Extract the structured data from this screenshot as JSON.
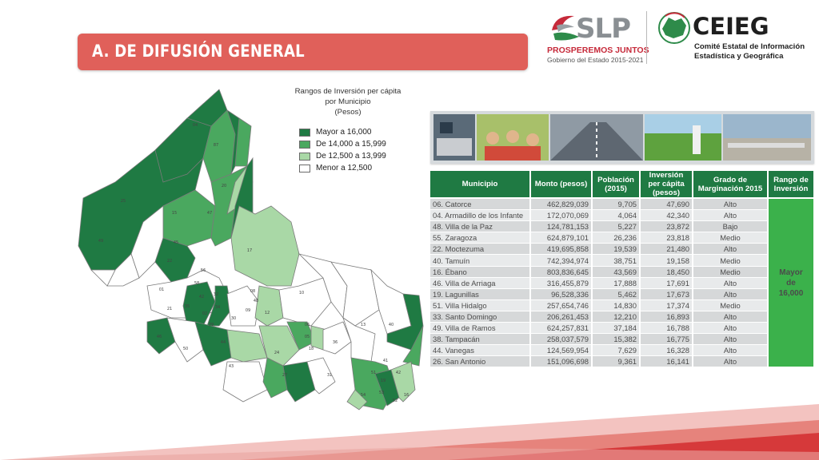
{
  "header": {
    "title": "A. DE DIFUSIÓN GENERAL",
    "slp_logo": {
      "word": "SLP",
      "tagline": "PROSPEREMOS JUNTOS",
      "government": "Gobierno del Estado 2015-2021"
    },
    "ceieg_logo": {
      "word": "CEIEG",
      "line1": "Comité Estatal de Información",
      "line2": "Estadística y Geográfica"
    }
  },
  "legend": {
    "title_lines": [
      "Rangos de Inversión per cápita",
      "por Municipio",
      "(Pesos)"
    ],
    "items": [
      {
        "label": "Mayor a 16,000",
        "color": "#1f7a43"
      },
      {
        "label": "De 14,000 a 15,999",
        "color": "#4aa85f"
      },
      {
        "label": "De 12,500 a 13,999",
        "color": "#a9d8a6"
      },
      {
        "label": "Menor a 12,500",
        "color": "#ffffff"
      }
    ]
  },
  "map": {
    "region_labels": [
      "04",
      "87",
      "20",
      "15",
      "47",
      "45",
      "25",
      "49",
      "22",
      "17",
      "56",
      "10",
      "01",
      "21",
      "58",
      "32",
      "35",
      "42",
      "34",
      "30",
      "09",
      "29",
      "02",
      "08",
      "48",
      "13",
      "12",
      "05",
      "24",
      "46",
      "36",
      "18",
      "50",
      "44",
      "43",
      "27",
      "31",
      "06",
      "41",
      "54",
      "53",
      "51",
      "19",
      "16",
      "42",
      "40",
      "52"
    ]
  },
  "table": {
    "headers": [
      "Municipio",
      "Monto (pesos)",
      "Población (2015)",
      "Inversión per cápita (pesos)",
      "Grado de Marginación 2015",
      "Rango de Inversión"
    ],
    "rows": [
      [
        "06. Catorce",
        "462,829,039",
        "9,705",
        "47,690",
        "Alto"
      ],
      [
        "04. Armadillo de los Infante",
        "172,070,069",
        "4,064",
        "42,340",
        "Alto"
      ],
      [
        "48. Villa de la Paz",
        "124,781,153",
        "5,227",
        "23,872",
        "Bajo"
      ],
      [
        "55. Zaragoza",
        "624,879,101",
        "26,236",
        "23,818",
        "Medio"
      ],
      [
        "22. Moctezuma",
        "419,695,858",
        "19,539",
        "21,480",
        "Alto"
      ],
      [
        "40. Tamuín",
        "742,394,974",
        "38,751",
        "19,158",
        "Medio"
      ],
      [
        "16. Ébano",
        "803,836,645",
        "43,569",
        "18,450",
        "Medio"
      ],
      [
        "46. Villa de Arriaga",
        "316,455,879",
        "17,888",
        "17,691",
        "Alto"
      ],
      [
        "19. Lagunillas",
        "96,528,336",
        "5,462",
        "17,673",
        "Alto"
      ],
      [
        "51. Villa Hidalgo",
        "257,654,746",
        "14,830",
        "17,374",
        "Medio"
      ],
      [
        "33. Santo Domingo",
        "206,261,453",
        "12,210",
        "16,893",
        "Alto"
      ],
      [
        "49. Villa de Ramos",
        "624,257,831",
        "37,184",
        "16,788",
        "Alto"
      ],
      [
        "38. Tampacán",
        "258,037,579",
        "15,382",
        "16,775",
        "Alto"
      ],
      [
        "44. Vanegas",
        "124,569,954",
        "7,629",
        "16,328",
        "Alto"
      ],
      [
        "26. San Antonio",
        "151,096,698",
        "9,361",
        "16,141",
        "Alto"
      ]
    ],
    "rango": [
      "Mayor",
      "de",
      "16,000"
    ]
  },
  "colors": {
    "accent_red": "#e0605a",
    "dark_green": "#1f7a43",
    "mid_green": "#4aa85f",
    "light_green": "#a9d8a6",
    "rango_green": "#3bb14b"
  }
}
